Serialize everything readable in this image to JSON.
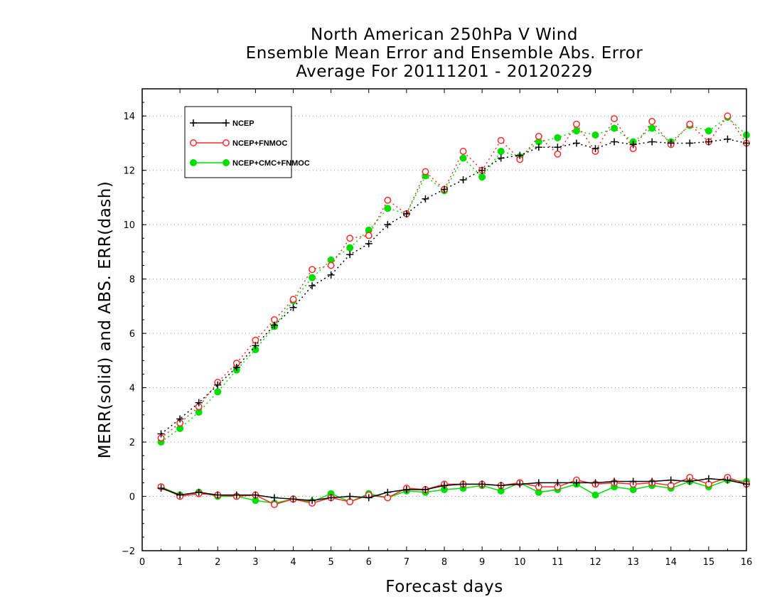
{
  "chart_data": {
    "type": "line",
    "title": "North American 250hPa V Wind",
    "subtitle": "Ensemble Mean Error and Ensemble Abs. Error",
    "subtitle2": "Average For 20111201 - 20120229",
    "xlabel": "Forecast days",
    "ylabel": "MERR(solid) and ABS. ERR(dash)",
    "xlim": [
      0,
      16
    ],
    "ylim": [
      -2,
      15
    ],
    "x_ticks": [
      0,
      1,
      2,
      3,
      4,
      5,
      6,
      7,
      8,
      9,
      10,
      11,
      12,
      13,
      14,
      15,
      16
    ],
    "y_ticks": [
      -2,
      0,
      2,
      4,
      6,
      8,
      10,
      12,
      14
    ],
    "grid": "horizontal dotted",
    "legend_position": "top-left",
    "x": [
      0.5,
      1,
      1.5,
      2,
      2.5,
      3,
      3.5,
      4,
      4.5,
      5,
      5.5,
      6,
      6.5,
      7,
      7.5,
      8,
      8.5,
      9,
      9.5,
      10,
      10.5,
      11,
      11.5,
      12,
      12.5,
      13,
      13.5,
      14,
      14.5,
      15,
      15.5,
      16
    ],
    "series": [
      {
        "name": "NCEP",
        "color": "#000000",
        "marker": "plus",
        "kind": "abs_error",
        "values": [
          2.3,
          2.85,
          3.45,
          4.1,
          4.75,
          5.55,
          6.3,
          6.95,
          7.75,
          8.15,
          8.9,
          9.3,
          10.0,
          10.4,
          10.95,
          11.3,
          11.65,
          12.0,
          12.45,
          12.55,
          12.85,
          12.85,
          13.0,
          12.8,
          13.05,
          12.95,
          13.05,
          13.0,
          13.0,
          13.05,
          13.15,
          13.0
        ]
      },
      {
        "name": "NCEP+FNMOC",
        "color": "#ff2a2a",
        "marker": "open-circle",
        "kind": "abs_error",
        "values": [
          2.15,
          2.7,
          3.3,
          4.2,
          4.9,
          5.75,
          6.5,
          7.25,
          8.35,
          8.5,
          9.5,
          9.6,
          10.9,
          10.4,
          11.95,
          11.3,
          12.7,
          12.0,
          13.1,
          12.4,
          13.25,
          12.6,
          13.7,
          12.7,
          13.9,
          12.8,
          13.8,
          12.95,
          13.7,
          13.05,
          14.0,
          13.0
        ]
      },
      {
        "name": "NCEP+CMC+FNMOC",
        "color": "#00dd00",
        "marker": "filled-circle",
        "kind": "abs_error",
        "values": [
          2.0,
          2.5,
          3.1,
          3.85,
          4.65,
          5.4,
          6.25,
          7.2,
          8.05,
          8.7,
          9.15,
          9.8,
          10.6,
          10.4,
          11.8,
          11.25,
          12.45,
          11.75,
          12.7,
          12.5,
          13.05,
          13.2,
          13.45,
          13.3,
          13.55,
          13.05,
          13.55,
          13.05,
          13.65,
          13.45,
          13.95,
          13.3
        ]
      },
      {
        "name": "NCEP",
        "color": "#000000",
        "marker": "plus",
        "kind": "mean_error",
        "values": [
          0.3,
          0.05,
          0.15,
          0.05,
          0.05,
          0.05,
          -0.05,
          -0.1,
          -0.15,
          -0.05,
          0.0,
          -0.05,
          0.15,
          0.25,
          0.25,
          0.4,
          0.45,
          0.45,
          0.4,
          0.45,
          0.5,
          0.5,
          0.5,
          0.5,
          0.55,
          0.55,
          0.55,
          0.6,
          0.55,
          0.65,
          0.6,
          0.45
        ]
      },
      {
        "name": "NCEP+FNMOC",
        "color": "#ff2a2a",
        "marker": "open-circle",
        "kind": "mean_error",
        "values": [
          0.35,
          0.0,
          0.1,
          0.05,
          0.0,
          0.05,
          -0.3,
          -0.1,
          -0.25,
          -0.05,
          -0.2,
          0.05,
          -0.05,
          0.3,
          0.25,
          0.45,
          0.45,
          0.45,
          0.4,
          0.5,
          0.35,
          0.35,
          0.6,
          0.45,
          0.5,
          0.45,
          0.5,
          0.4,
          0.7,
          0.45,
          0.7,
          0.45
        ]
      },
      {
        "name": "NCEP+CMC+FNMOC",
        "color": "#00dd00",
        "marker": "filled-circle",
        "kind": "mean_error",
        "values": [
          0.35,
          0.05,
          0.15,
          0.0,
          0.0,
          -0.15,
          -0.25,
          -0.1,
          -0.2,
          0.1,
          -0.2,
          0.1,
          -0.05,
          0.2,
          0.15,
          0.25,
          0.3,
          0.4,
          0.2,
          0.5,
          0.15,
          0.25,
          0.45,
          0.05,
          0.35,
          0.25,
          0.4,
          0.3,
          0.55,
          0.35,
          0.6,
          0.55
        ]
      }
    ],
    "legend": [
      "NCEP",
      "NCEP+FNMOC",
      "NCEP+CMC+FNMOC"
    ]
  }
}
